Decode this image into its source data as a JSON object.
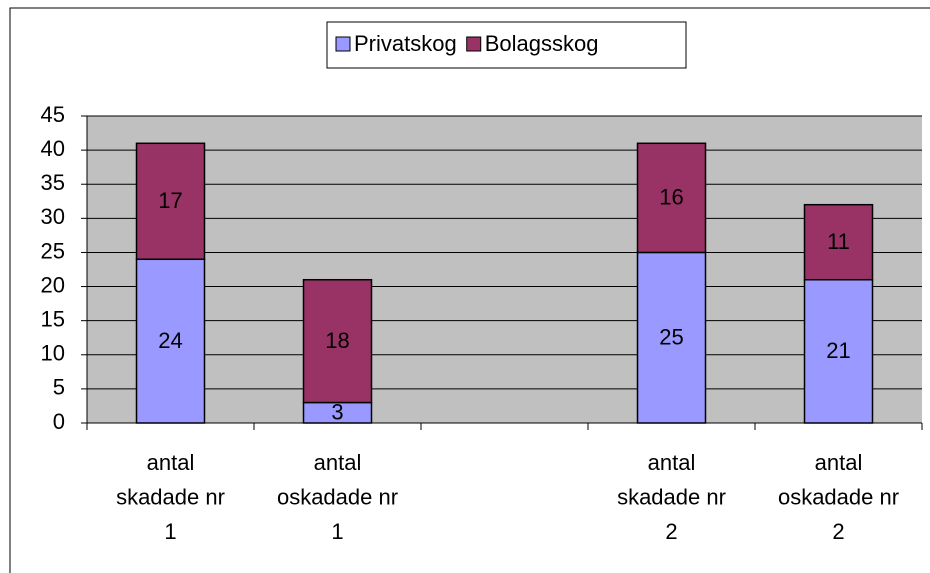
{
  "chart_data": {
    "type": "stacked_bar",
    "categories": [
      "antal skadade nr 1",
      "antal oskadade nr 1",
      null,
      "antal skadade nr 2",
      "antal oskadade nr 2"
    ],
    "series": [
      {
        "name": "Privatskog",
        "color": "#9999ff",
        "values": [
          24,
          3,
          null,
          25,
          21
        ]
      },
      {
        "name": "Bolagsskog",
        "color": "#993366",
        "values": [
          17,
          18,
          null,
          16,
          11
        ]
      }
    ],
    "ylim": [
      0,
      45
    ],
    "yticks": [
      0,
      5,
      10,
      15,
      20,
      25,
      30,
      35,
      40,
      45
    ],
    "grid": true,
    "legend": "top",
    "background": "#c0c0c0"
  }
}
